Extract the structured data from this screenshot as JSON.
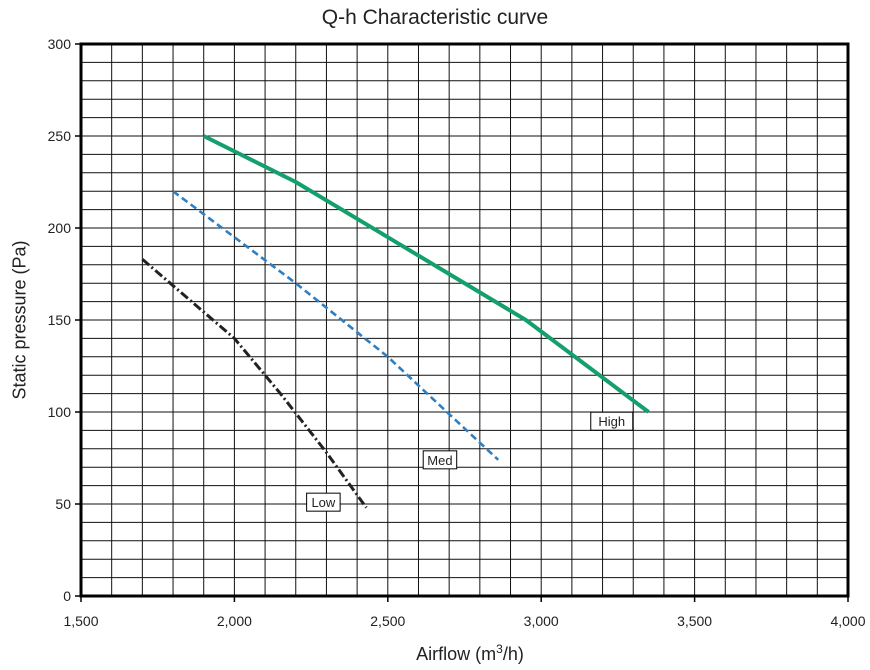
{
  "chart_data": {
    "type": "line",
    "title": "Q-h Characteristic curve",
    "xlabel_main": "Airflow (m",
    "xlabel_sup": "3",
    "xlabel_end": "/h)",
    "ylabel": "Static pressure (Pa)",
    "xlim": [
      1500,
      4000
    ],
    "ylim": [
      0,
      300
    ],
    "x_ticks": [
      1500,
      2000,
      2500,
      3000,
      3500,
      4000
    ],
    "x_tick_labels": [
      "1,500",
      "2,000",
      "2,500",
      "3,000",
      "3,500",
      "4,000"
    ],
    "y_ticks": [
      0,
      50,
      100,
      150,
      200,
      250,
      300
    ],
    "y_tick_labels": [
      "0",
      "50",
      "100",
      "150",
      "200",
      "250",
      "300"
    ],
    "grid": true,
    "series": [
      {
        "name": "High",
        "color": "#13a06c",
        "style": "solid",
        "x": [
          1900,
          2200,
          2500,
          2950,
          3350
        ],
        "y": [
          250,
          225,
          195,
          150,
          100
        ],
        "label_at": [
          3230,
          95
        ]
      },
      {
        "name": "Med",
        "color": "#2f7fc1",
        "style": "dashed",
        "x": [
          1800,
          2200,
          2500,
          2860
        ],
        "y": [
          220,
          170,
          130,
          74
        ],
        "label_at": [
          2670,
          74
        ]
      },
      {
        "name": "Low",
        "color": "#222222",
        "style": "dashdot",
        "x": [
          1700,
          2000,
          2150,
          2300,
          2430
        ],
        "y": [
          183,
          140,
          110,
          78,
          48
        ],
        "label_at": [
          2290,
          51
        ]
      }
    ]
  }
}
